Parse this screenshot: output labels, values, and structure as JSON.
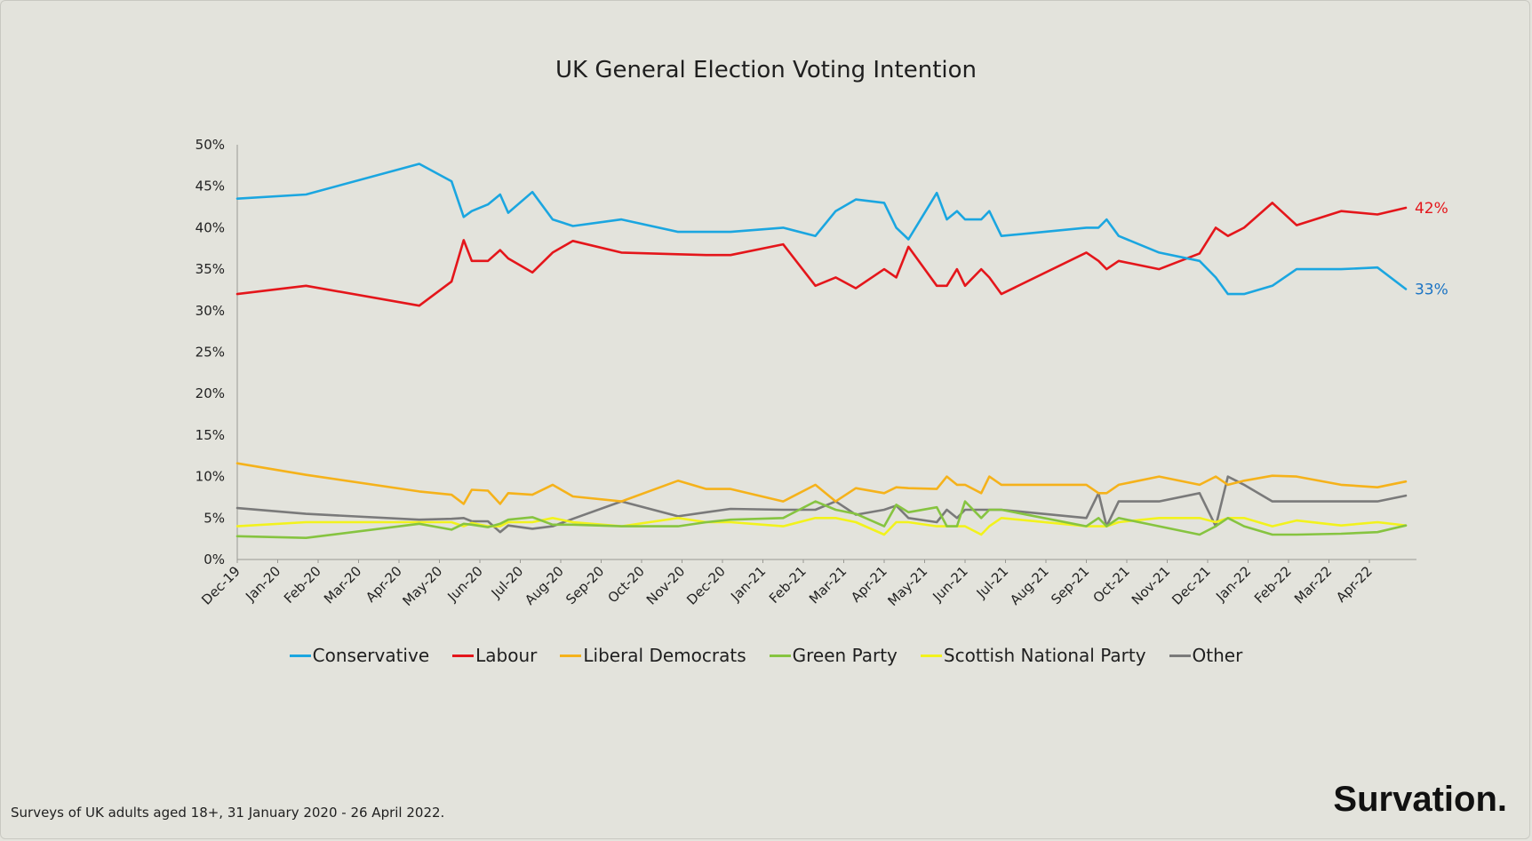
{
  "chart_data": {
    "type": "line",
    "title": "UK General Election Voting Intention",
    "xlabel": "",
    "ylabel": "",
    "ylim": [
      0,
      50
    ],
    "y_ticks": [
      "0%",
      "5%",
      "10%",
      "15%",
      "20%",
      "25%",
      "30%",
      "35%",
      "40%",
      "45%",
      "50%"
    ],
    "x_ticks": [
      "Dec-19",
      "Jan-20",
      "Feb-20",
      "Mar-20",
      "Apr-20",
      "May-20",
      "Jun-20",
      "Jul-20",
      "Aug-20",
      "Sep-20",
      "Oct-20",
      "Nov-20",
      "Dec-20",
      "Jan-21",
      "Feb-21",
      "Mar-21",
      "Apr-21",
      "May-21",
      "Jun-21",
      "Jul-21",
      "Aug-21",
      "Sep-21",
      "Oct-21",
      "Nov-21",
      "Dec-21",
      "Jan-22",
      "Feb-22",
      "Mar-22",
      "Apr-22"
    ],
    "x_unit": "months since Dec-19",
    "grid": false,
    "legend_position": "bottom",
    "end_labels": [
      {
        "series": "Labour",
        "text": "42%"
      },
      {
        "series": "Conservative",
        "text": "33%"
      }
    ],
    "series": [
      {
        "name": "Conservative",
        "color": "#1ba6e0",
        "x": [
          0,
          1.7,
          4.5,
          5.3,
          5.6,
          5.8,
          6.2,
          6.5,
          6.7,
          7.3,
          7.8,
          8.3,
          9.5,
          10.9,
          11.6,
          12.2,
          13.5,
          14.3,
          14.8,
          15.3,
          16.0,
          16.3,
          16.6,
          17.3,
          17.55,
          17.8,
          18.0,
          18.4,
          18.6,
          18.9,
          21.0,
          21.3,
          21.5,
          21.8,
          22.8,
          23.8,
          24.2,
          24.5,
          24.9,
          25.6,
          26.2,
          27.3,
          28.2,
          28.9
        ],
        "y": [
          43.5,
          44.0,
          47.7,
          45.6,
          41.3,
          42.0,
          42.8,
          44.0,
          41.8,
          44.3,
          41.0,
          40.2,
          41.0,
          39.5,
          39.5,
          39.5,
          40.0,
          39.0,
          42.0,
          43.4,
          43.0,
          40.0,
          38.6,
          44.2,
          41.0,
          42.0,
          41.0,
          41.0,
          42.0,
          39.0,
          40.0,
          40.0,
          41.0,
          39.0,
          37.0,
          36.0,
          34.0,
          32.0,
          32.0,
          33.0,
          35.0,
          35.0,
          35.2,
          32.6
        ]
      },
      {
        "name": "Labour",
        "color": "#e4161b",
        "x": [
          0,
          1.7,
          4.5,
          5.3,
          5.6,
          5.8,
          6.2,
          6.5,
          6.7,
          7.3,
          7.8,
          8.3,
          9.5,
          10.9,
          11.6,
          12.2,
          13.5,
          14.3,
          14.8,
          15.3,
          16.0,
          16.3,
          16.6,
          17.3,
          17.55,
          17.8,
          18.0,
          18.4,
          18.6,
          18.9,
          21.0,
          21.3,
          21.5,
          21.8,
          22.8,
          23.8,
          24.2,
          24.5,
          24.9,
          25.6,
          26.2,
          27.3,
          28.2,
          28.9
        ],
        "y": [
          32.0,
          33.0,
          30.6,
          33.5,
          38.5,
          36.0,
          36.0,
          37.3,
          36.3,
          34.6,
          37.0,
          38.4,
          37.0,
          36.8,
          36.7,
          36.7,
          38.0,
          33.0,
          34.0,
          32.7,
          35.0,
          34.0,
          37.7,
          33.0,
          33.0,
          35.0,
          33.0,
          35.0,
          34.0,
          32.0,
          37.0,
          36.0,
          35.0,
          36.0,
          35.0,
          36.9,
          40.0,
          39.0,
          40.0,
          43.0,
          40.3,
          42.0,
          41.6,
          42.4
        ]
      },
      {
        "name": "Liberal Democrats",
        "color": "#f5b21b",
        "x": [
          0,
          1.7,
          4.5,
          5.3,
          5.6,
          5.8,
          6.2,
          6.5,
          6.7,
          7.3,
          7.8,
          8.3,
          9.5,
          10.9,
          11.6,
          12.2,
          13.5,
          14.3,
          14.8,
          15.3,
          16.0,
          16.3,
          16.6,
          17.3,
          17.55,
          17.8,
          18.0,
          18.4,
          18.6,
          18.9,
          21.0,
          21.3,
          21.5,
          21.8,
          22.8,
          23.8,
          24.2,
          24.5,
          24.9,
          25.6,
          26.2,
          27.3,
          28.2,
          28.9
        ],
        "y": [
          11.6,
          10.2,
          8.2,
          7.8,
          6.7,
          8.4,
          8.3,
          6.7,
          8.0,
          7.8,
          9.0,
          7.6,
          7.0,
          9.5,
          8.5,
          8.5,
          7.0,
          9.0,
          7.0,
          8.6,
          8.0,
          8.7,
          8.6,
          8.5,
          10.0,
          9.0,
          9.0,
          8.0,
          10.0,
          9.0,
          9.0,
          8.0,
          8.0,
          9.0,
          10.0,
          9.0,
          10.0,
          9.0,
          9.5,
          10.1,
          10.0,
          9.0,
          8.7,
          9.4
        ]
      },
      {
        "name": "Green Party",
        "color": "#86c440",
        "x": [
          0,
          1.7,
          4.5,
          5.3,
          5.6,
          5.8,
          6.2,
          6.5,
          6.7,
          7.3,
          7.8,
          8.3,
          9.5,
          10.9,
          11.6,
          12.2,
          13.5,
          14.3,
          14.8,
          15.3,
          16.0,
          16.3,
          16.6,
          17.3,
          17.55,
          17.8,
          18.0,
          18.4,
          18.6,
          18.9,
          21.0,
          21.3,
          21.5,
          21.8,
          22.8,
          23.8,
          24.2,
          24.5,
          24.9,
          25.6,
          26.2,
          27.3,
          28.2,
          28.9
        ],
        "y": [
          2.8,
          2.6,
          4.3,
          3.6,
          4.3,
          4.2,
          3.9,
          4.3,
          4.8,
          5.1,
          4.2,
          4.2,
          4.0,
          4.0,
          4.5,
          4.8,
          5.0,
          7.0,
          6.0,
          5.5,
          4.0,
          6.6,
          5.7,
          6.3,
          4.0,
          4.0,
          7.0,
          5.0,
          6.0,
          6.0,
          4.0,
          5.0,
          4.0,
          5.0,
          4.0,
          3.0,
          4.0,
          5.0,
          4.0,
          3.0,
          3.0,
          3.1,
          3.3,
          4.1
        ]
      },
      {
        "name": "Scottish National Party",
        "color": "#f2f21d",
        "x": [
          0,
          1.7,
          4.5,
          5.3,
          5.6,
          5.8,
          6.2,
          6.5,
          6.7,
          7.3,
          7.8,
          8.3,
          9.5,
          10.9,
          11.6,
          12.2,
          13.5,
          14.3,
          14.8,
          15.3,
          16.0,
          16.3,
          16.6,
          17.3,
          17.55,
          17.8,
          18.0,
          18.4,
          18.6,
          18.9,
          21.0,
          21.3,
          21.5,
          21.8,
          22.8,
          23.8,
          24.2,
          24.5,
          24.9,
          25.6,
          26.2,
          27.3,
          28.2,
          28.9
        ],
        "y": [
          4.0,
          4.5,
          4.5,
          4.5,
          4.0,
          4.4,
          4.0,
          4.0,
          4.5,
          4.5,
          5.0,
          4.5,
          4.0,
          5.0,
          4.5,
          4.5,
          4.0,
          5.0,
          5.0,
          4.5,
          3.0,
          4.5,
          4.5,
          4.0,
          4.0,
          4.0,
          4.0,
          3.0,
          4.0,
          5.0,
          4.0,
          4.0,
          4.0,
          4.5,
          5.0,
          5.0,
          4.5,
          5.0,
          5.0,
          4.0,
          4.7,
          4.1,
          4.5,
          4.1
        ]
      },
      {
        "name": "Other",
        "color": "#7a7a7a",
        "x": [
          0,
          1.7,
          4.5,
          5.3,
          5.6,
          5.8,
          6.2,
          6.5,
          6.7,
          7.3,
          7.8,
          8.3,
          9.5,
          10.9,
          11.6,
          12.2,
          13.5,
          14.3,
          14.8,
          15.3,
          16.0,
          16.3,
          16.6,
          17.3,
          17.55,
          17.8,
          18.0,
          18.4,
          18.6,
          18.9,
          21.0,
          21.3,
          21.5,
          21.8,
          22.8,
          23.8,
          24.2,
          24.5,
          24.9,
          25.6,
          26.2,
          27.3,
          28.2,
          28.9
        ],
        "y": [
          6.2,
          5.5,
          4.8,
          4.9,
          5.0,
          4.6,
          4.6,
          3.3,
          4.1,
          3.7,
          4.0,
          4.9,
          7.0,
          5.2,
          5.7,
          6.1,
          6.0,
          6.0,
          7.0,
          5.4,
          6.0,
          6.5,
          5.0,
          4.5,
          6.0,
          5.0,
          6.0,
          6.0,
          6.0,
          6.0,
          5.0,
          8.0,
          4.0,
          7.0,
          7.0,
          8.0,
          4.0,
          10.0,
          9.0,
          7.0,
          7.0,
          7.0,
          7.0,
          7.7
        ]
      }
    ]
  },
  "footnote": "Surveys of UK adults aged 18+, 31 January 2020 - 26 April 2022.",
  "brand": "Survation."
}
